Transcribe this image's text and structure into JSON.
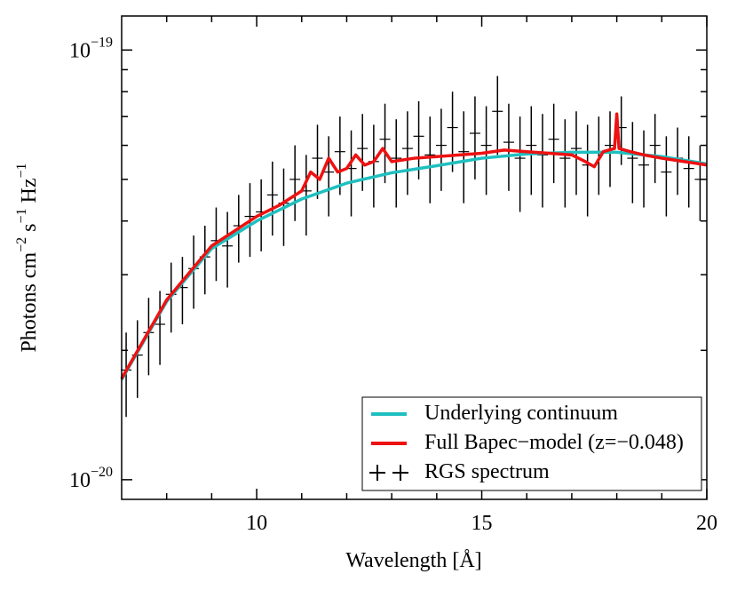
{
  "chart_data": {
    "type": "spectrum",
    "xlabel": "Wavelength [Å]",
    "ylabel": [
      "Photons cm",
      "−2",
      " s",
      "−1",
      " Hz",
      "−1"
    ],
    "xlim": [
      7,
      20
    ],
    "xticks": [
      10,
      15,
      20
    ],
    "xminorticks": [
      8,
      9,
      11,
      12,
      13,
      14,
      16,
      17,
      18,
      19
    ],
    "ylim": [
      9e-21,
      1.2e-19
    ],
    "log_y": true,
    "yticks": [
      {
        "value": 1e-20,
        "label": "10",
        "sup": "−20"
      },
      {
        "value": 1e-19,
        "label": "10",
        "sup": "−19"
      }
    ],
    "yminorticks": [
      2e-20,
      3e-20,
      4e-20,
      5e-20,
      6e-20,
      7e-20,
      8e-20,
      9e-20
    ],
    "legend": "lower right",
    "series": [
      {
        "name": "Underlying continuum",
        "color": "#1fbfbf",
        "x": [
          7,
          8,
          9,
          10,
          11,
          12,
          13,
          14,
          15,
          16,
          17,
          18,
          19,
          20
        ],
        "values": [
          1.71e-20,
          2.6e-20,
          3.45e-20,
          4e-20,
          4.5e-20,
          4.9e-20,
          5.18e-20,
          5.38e-20,
          5.6e-20,
          5.73e-20,
          5.78e-20,
          5.78e-20,
          5.65e-20,
          5.43e-20
        ]
      },
      {
        "name": "Full Bapec−model (z=−0.048)",
        "color": "#ee1111",
        "x": [
          7,
          8,
          9,
          10,
          10.5,
          11,
          11.2,
          11.4,
          11.6,
          11.8,
          12,
          12.2,
          12.4,
          12.6,
          12.8,
          13,
          13.5,
          14,
          14.5,
          15,
          15.5,
          16,
          16.5,
          17,
          17.3,
          17.5,
          17.7,
          17.95,
          18.0,
          18.05,
          18.3,
          18.6,
          19,
          19.5,
          20
        ],
        "values": [
          1.72e-20,
          2.62e-20,
          3.5e-20,
          4.1e-20,
          4.35e-20,
          4.7e-20,
          5.2e-20,
          5e-20,
          5.6e-20,
          5.2e-20,
          5.3e-20,
          5.7e-20,
          5.4e-20,
          5.5e-20,
          5.9e-20,
          5.5e-20,
          5.6e-20,
          5.65e-20,
          5.7e-20,
          5.75e-20,
          5.85e-20,
          5.8e-20,
          5.75e-20,
          5.7e-20,
          5.5e-20,
          5.35e-20,
          5.8e-20,
          5.9e-20,
          7.1e-20,
          5.9e-20,
          5.8e-20,
          5.7e-20,
          5.6e-20,
          5.5e-20,
          5.4e-20
        ]
      },
      {
        "name": "RGS spectrum",
        "color": "#000000",
        "x": [
          7.1,
          7.35,
          7.6,
          7.85,
          8.1,
          8.35,
          8.6,
          8.85,
          9.1,
          9.35,
          9.6,
          9.85,
          10.1,
          10.35,
          10.6,
          10.85,
          11.1,
          11.35,
          11.6,
          11.85,
          12.1,
          12.35,
          12.6,
          12.85,
          13.1,
          13.35,
          13.6,
          13.85,
          14.1,
          14.35,
          14.6,
          14.85,
          15.1,
          15.35,
          15.6,
          15.85,
          16.1,
          16.35,
          16.6,
          16.85,
          17.1,
          17.35,
          17.6,
          17.85,
          18.1,
          18.35,
          18.6,
          18.85,
          19.1,
          19.35,
          19.6,
          19.85
        ],
        "values": [
          1.8e-20,
          1.95e-20,
          2.2e-20,
          2.3e-20,
          2.7e-20,
          2.8e-20,
          3.1e-20,
          3.3e-20,
          3.6e-20,
          3.5e-20,
          3.9e-20,
          4.1e-20,
          4.2e-20,
          4.6e-20,
          4.4e-20,
          5e-20,
          4.7e-20,
          5.6e-20,
          5.2e-20,
          5.8e-20,
          5.3e-20,
          5.9e-20,
          5.5e-20,
          6.2e-20,
          5.6e-20,
          5.9e-20,
          6.3e-20,
          5.7e-20,
          6e-20,
          6.6e-20,
          5.8e-20,
          6.4e-20,
          6e-20,
          7.2e-20,
          6.1e-20,
          5.6e-20,
          6e-20,
          5.7e-20,
          6.2e-20,
          5.6e-20,
          5.9e-20,
          5.4e-20,
          5.8e-20,
          6e-20,
          6.6e-20,
          5.6e-20,
          5.4e-20,
          6e-20,
          5.2e-20,
          5.6e-20,
          5.3e-20,
          5e-20
        ],
        "errors": [
          4e-21,
          4e-21,
          4.5e-21,
          4.5e-21,
          5e-21,
          5e-21,
          6e-21,
          6e-21,
          7e-21,
          7e-21,
          7e-21,
          8e-21,
          8e-21,
          9e-21,
          9e-21,
          1e-20,
          1e-20,
          1.1e-20,
          1.1e-20,
          1.2e-20,
          1.2e-20,
          1.2e-20,
          1.2e-20,
          1.3e-20,
          1.3e-20,
          1.3e-20,
          1.3e-20,
          1.3e-20,
          1.3e-20,
          1.4e-20,
          1.4e-20,
          1.4e-20,
          1.4e-20,
          1.5e-20,
          1.4e-20,
          1.4e-20,
          1.4e-20,
          1.4e-20,
          1.3e-20,
          1.3e-20,
          1.3e-20,
          1.3e-20,
          1.2e-20,
          1.2e-20,
          1.2e-20,
          1.2e-20,
          1.1e-20,
          1.1e-20,
          1.1e-20,
          1e-20,
          1e-20,
          1e-20
        ]
      }
    ]
  }
}
